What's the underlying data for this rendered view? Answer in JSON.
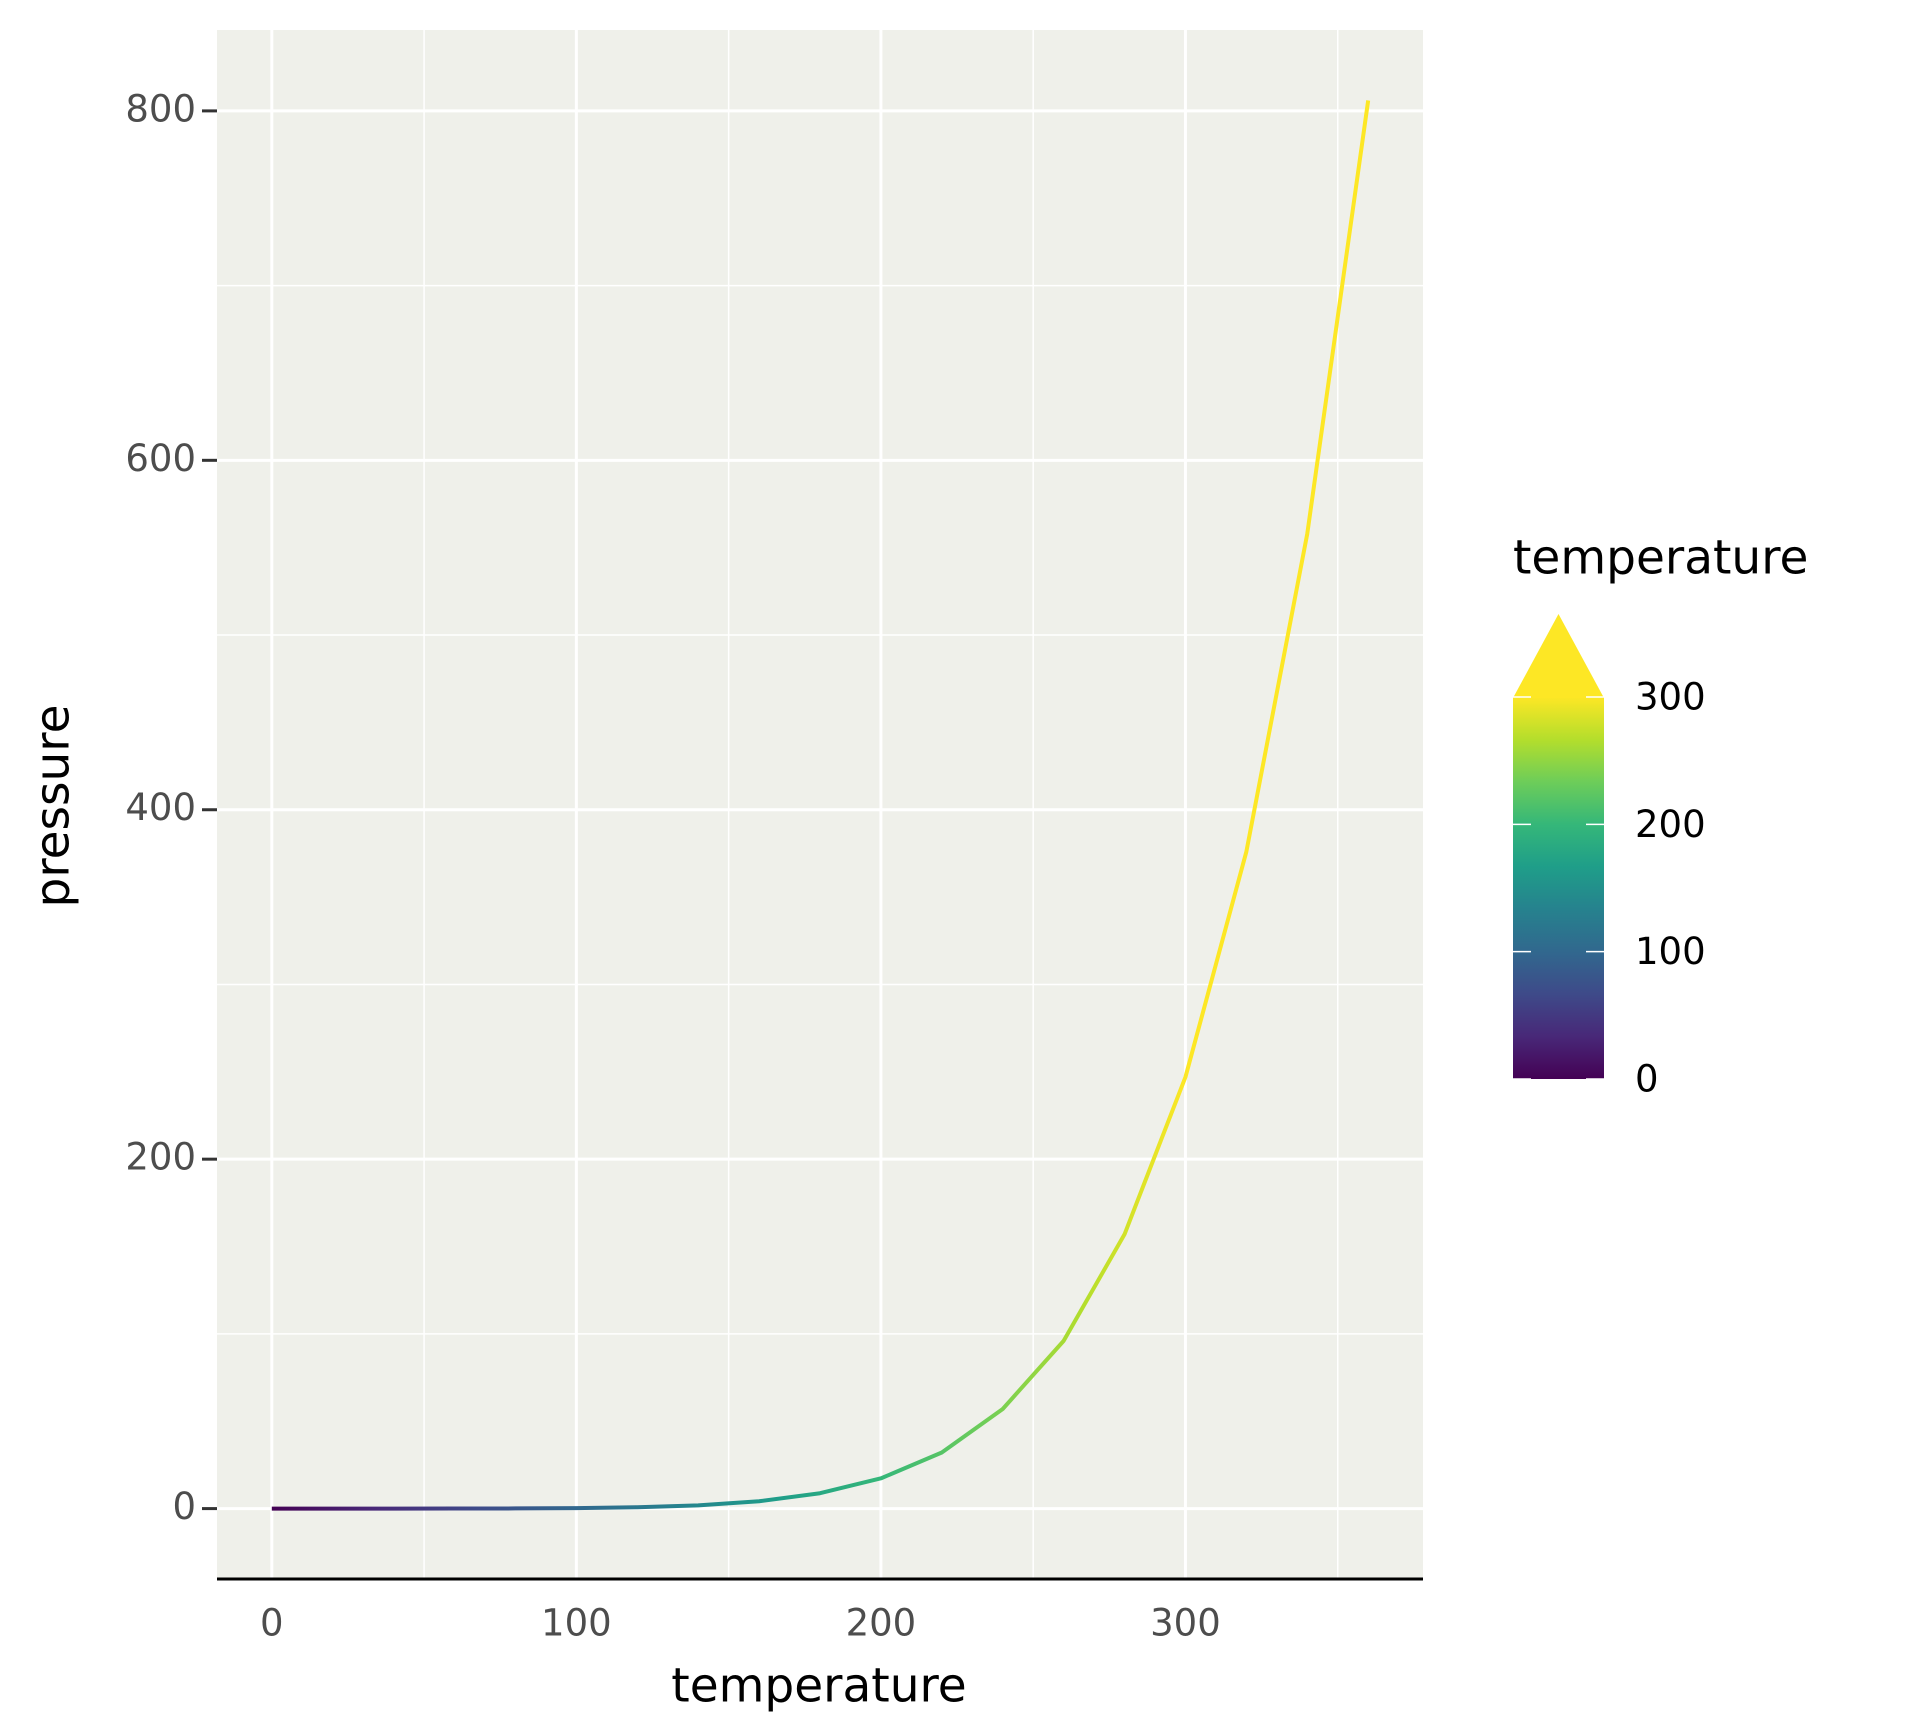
{
  "chart_data": {
    "type": "line",
    "x_label": "temperature",
    "y_label": "pressure",
    "x": [
      0,
      20,
      40,
      60,
      80,
      100,
      120,
      140,
      160,
      180,
      200,
      220,
      240,
      260,
      280,
      300,
      320,
      340,
      360
    ],
    "y": [
      0.0002,
      0.0012,
      0.006,
      0.03,
      0.09,
      0.27,
      0.75,
      1.85,
      4.2,
      8.8,
      17.3,
      32.1,
      57,
      96,
      157,
      247,
      376,
      558,
      806
    ],
    "xlim": [
      -18,
      378
    ],
    "ylim": [
      -40.3,
      846.3
    ],
    "xticks": [
      0,
      100,
      200,
      300
    ],
    "yticks": [
      0,
      200,
      400,
      600,
      800
    ],
    "xminor": [
      50,
      150,
      250,
      350
    ],
    "yminor": [
      100,
      300,
      500,
      700
    ],
    "grid": true,
    "panel_color": "#eff0ea",
    "colorbar": {
      "title": "temperature",
      "limits": [
        0,
        300
      ],
      "ticks": [
        0,
        100,
        200,
        300
      ],
      "colors": [
        "#440154",
        "#482878",
        "#3e4a89",
        "#31688e",
        "#26828e",
        "#1f9e89",
        "#35b779",
        "#6dcd59",
        "#b4de2c",
        "#fde725"
      ]
    }
  }
}
